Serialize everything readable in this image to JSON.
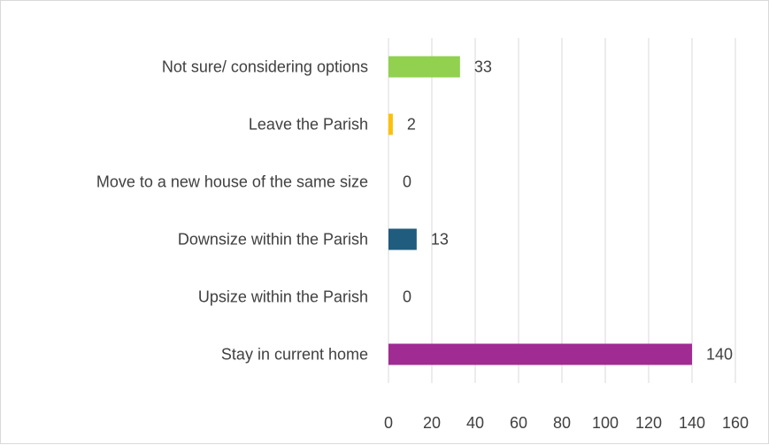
{
  "chart_data": {
    "type": "bar",
    "orientation": "horizontal",
    "categories": [
      "Not sure/ considering options",
      "Leave the Parish",
      "Move to a new house of the same size",
      "Downsize within the Parish",
      "Upsize within the Parish",
      "Stay in current home"
    ],
    "values": [
      33,
      2,
      0,
      13,
      0,
      140
    ],
    "colors": [
      "#92d050",
      "#ffc000",
      "#7f7f7f",
      "#1f5c7e",
      "#7f7f7f",
      "#a02b93"
    ],
    "xlim": [
      0,
      160
    ],
    "x_ticks": [
      "0",
      "20",
      "40",
      "60",
      "80",
      "100",
      "120",
      "140",
      "160"
    ],
    "grid": true,
    "data_labels": [
      "33",
      "2",
      "0",
      "13",
      "0",
      "140"
    ],
    "legend": "none"
  }
}
